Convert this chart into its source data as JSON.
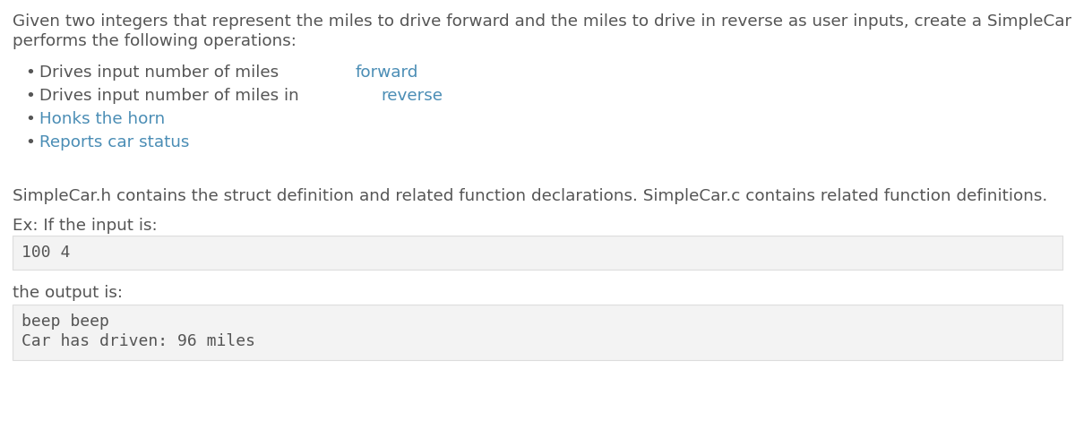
{
  "bg_color": "#ffffff",
  "text_color": "#555555",
  "link_color": "#4a8db5",
  "code_bg": "#f3f3f3",
  "code_border": "#dddddd",
  "line1": "Given two integers that represent the miles to drive forward and the miles to drive in reverse as user inputs, create a SimpleCar variable that",
  "line2": "performs the following operations:",
  "bullets": [
    [
      "Drives input number of miles ",
      "forward"
    ],
    [
      "Drives input number of miles in ",
      "reverse"
    ],
    [
      "Honks the horn",
      ""
    ],
    [
      "Reports car status",
      ""
    ]
  ],
  "para2": "SimpleCar.h contains the struct definition and related function declarations. SimpleCar.c contains related function definitions.",
  "para3": "Ex: If the input is:",
  "input_code": "100 4",
  "para4": "the output is:",
  "output_line1": "beep beep",
  "output_line2": "Car has driven: 96 miles",
  "font_size_main": 13.2,
  "font_size_code": 13.0
}
